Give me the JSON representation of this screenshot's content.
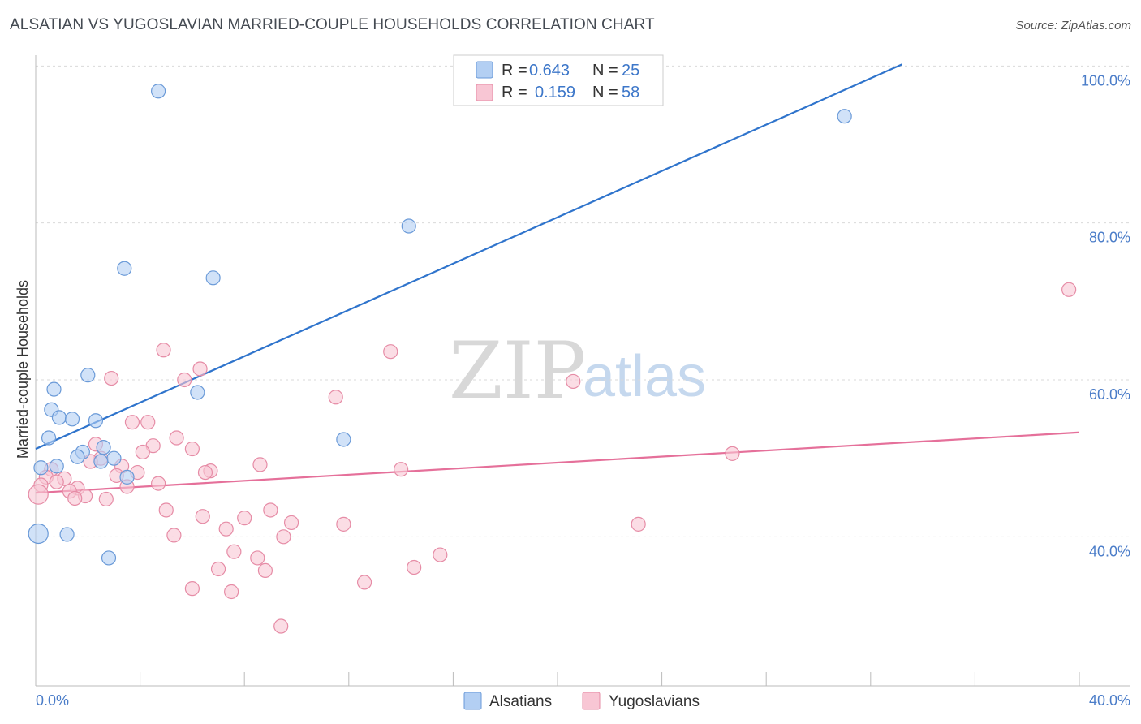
{
  "title": "ALSATIAN VS YUGOSLAVIAN MARRIED-COUPLE HOUSEHOLDS CORRELATION CHART",
  "source": "Source: ZipAtlas.com",
  "watermark": {
    "zip": "ZIP",
    "atlas": "atlas"
  },
  "colors": {
    "blue_fill": "#b3cff3",
    "blue_stroke": "#6a9ad8",
    "blue_line": "#2f74cc",
    "pink_fill": "#f8c6d4",
    "pink_stroke": "#e68ca6",
    "pink_line": "#e5709a",
    "grid": "#d9d9d9",
    "tick_text": "#4a7cc8"
  },
  "legend": {
    "rows": [
      {
        "r_label": "R =",
        "r_value": "0.643",
        "n_label": "N =",
        "n_value": "25",
        "series": "blue"
      },
      {
        "r_label": "R =",
        "r_value": "0.159",
        "n_label": "N =",
        "n_value": "58",
        "series": "pink"
      }
    ]
  },
  "bottom_legend": [
    "Alsatians",
    "Yugoslavians"
  ],
  "chart_data": {
    "type": "scatter",
    "title": "ALSATIAN VS YUGOSLAVIAN MARRIED-COUPLE HOUSEHOLDS CORRELATION CHART",
    "xlabel": "",
    "ylabel": "Married-couple Households",
    "xlim": [
      0,
      40
    ],
    "ylim": [
      21,
      102
    ],
    "x_tick_labels": [
      "0.0%",
      "40.0%"
    ],
    "y_ticks": [
      40,
      60,
      80,
      100
    ],
    "y_tick_labels": [
      "40.0%",
      "60.0%",
      "80.0%",
      "100.0%"
    ],
    "series": [
      {
        "name": "Alsatians",
        "color": "blue",
        "R": 0.643,
        "N": 25,
        "trend": {
          "x": [
            0,
            33.2
          ],
          "y": [
            51.2,
            100.2
          ]
        },
        "points": [
          {
            "x": 4.7,
            "y": 96.8
          },
          {
            "x": 31.0,
            "y": 93.6
          },
          {
            "x": 14.3,
            "y": 79.6
          },
          {
            "x": 3.4,
            "y": 74.2
          },
          {
            "x": 6.8,
            "y": 73.0
          },
          {
            "x": 2.0,
            "y": 60.6
          },
          {
            "x": 0.7,
            "y": 58.8
          },
          {
            "x": 6.2,
            "y": 58.4
          },
          {
            "x": 0.6,
            "y": 56.2
          },
          {
            "x": 0.9,
            "y": 55.2
          },
          {
            "x": 1.4,
            "y": 55.0
          },
          {
            "x": 2.3,
            "y": 54.8
          },
          {
            "x": 0.5,
            "y": 52.6
          },
          {
            "x": 11.8,
            "y": 52.4
          },
          {
            "x": 2.6,
            "y": 51.4
          },
          {
            "x": 1.8,
            "y": 50.8
          },
          {
            "x": 1.6,
            "y": 50.2
          },
          {
            "x": 3.0,
            "y": 50.0
          },
          {
            "x": 2.5,
            "y": 49.6
          },
          {
            "x": 0.8,
            "y": 49.0
          },
          {
            "x": 0.2,
            "y": 48.8
          },
          {
            "x": 3.5,
            "y": 47.6
          },
          {
            "x": 0.1,
            "y": 40.4
          },
          {
            "x": 1.2,
            "y": 40.3
          },
          {
            "x": 2.8,
            "y": 37.3
          }
        ]
      },
      {
        "name": "Yugoslavians",
        "color": "pink",
        "R": 0.159,
        "N": 58,
        "trend": {
          "x": [
            0,
            40
          ],
          "y": [
            45.6,
            53.3
          ]
        },
        "points": [
          {
            "x": 39.6,
            "y": 71.5
          },
          {
            "x": 4.9,
            "y": 63.8
          },
          {
            "x": 13.6,
            "y": 63.6
          },
          {
            "x": 6.3,
            "y": 61.4
          },
          {
            "x": 2.9,
            "y": 60.2
          },
          {
            "x": 5.7,
            "y": 60.0
          },
          {
            "x": 20.6,
            "y": 59.8
          },
          {
            "x": 11.5,
            "y": 57.8
          },
          {
            "x": 3.7,
            "y": 54.6
          },
          {
            "x": 4.3,
            "y": 54.6
          },
          {
            "x": 5.4,
            "y": 52.6
          },
          {
            "x": 2.3,
            "y": 51.8
          },
          {
            "x": 4.5,
            "y": 51.6
          },
          {
            "x": 6.0,
            "y": 51.2
          },
          {
            "x": 4.1,
            "y": 50.8
          },
          {
            "x": 26.7,
            "y": 50.6
          },
          {
            "x": 2.5,
            "y": 50.0
          },
          {
            "x": 2.1,
            "y": 49.6
          },
          {
            "x": 8.6,
            "y": 49.2
          },
          {
            "x": 3.3,
            "y": 49.0
          },
          {
            "x": 0.6,
            "y": 48.6
          },
          {
            "x": 14.0,
            "y": 48.6
          },
          {
            "x": 6.7,
            "y": 48.4
          },
          {
            "x": 3.9,
            "y": 48.2
          },
          {
            "x": 6.5,
            "y": 48.2
          },
          {
            "x": 3.1,
            "y": 47.8
          },
          {
            "x": 0.4,
            "y": 47.6
          },
          {
            "x": 1.1,
            "y": 47.4
          },
          {
            "x": 0.8,
            "y": 47.0
          },
          {
            "x": 4.7,
            "y": 46.8
          },
          {
            "x": 0.2,
            "y": 46.6
          },
          {
            "x": 3.5,
            "y": 46.4
          },
          {
            "x": 1.6,
            "y": 46.2
          },
          {
            "x": 1.3,
            "y": 45.8
          },
          {
            "x": 0.1,
            "y": 45.4
          },
          {
            "x": 1.9,
            "y": 45.2
          },
          {
            "x": 1.5,
            "y": 44.9
          },
          {
            "x": 2.7,
            "y": 44.8
          },
          {
            "x": 5.0,
            "y": 43.4
          },
          {
            "x": 9.0,
            "y": 43.4
          },
          {
            "x": 6.4,
            "y": 42.6
          },
          {
            "x": 8.0,
            "y": 42.4
          },
          {
            "x": 9.8,
            "y": 41.8
          },
          {
            "x": 11.8,
            "y": 41.6
          },
          {
            "x": 23.1,
            "y": 41.6
          },
          {
            "x": 7.3,
            "y": 41.0
          },
          {
            "x": 5.3,
            "y": 40.2
          },
          {
            "x": 9.5,
            "y": 40.0
          },
          {
            "x": 7.6,
            "y": 38.1
          },
          {
            "x": 15.5,
            "y": 37.7
          },
          {
            "x": 8.5,
            "y": 37.3
          },
          {
            "x": 7.0,
            "y": 35.9
          },
          {
            "x": 14.5,
            "y": 36.1
          },
          {
            "x": 8.8,
            "y": 35.7
          },
          {
            "x": 12.6,
            "y": 34.2
          },
          {
            "x": 6.0,
            "y": 33.4
          },
          {
            "x": 7.5,
            "y": 33.0
          },
          {
            "x": 9.4,
            "y": 28.6
          }
        ]
      }
    ],
    "legend_position": "top-center"
  }
}
